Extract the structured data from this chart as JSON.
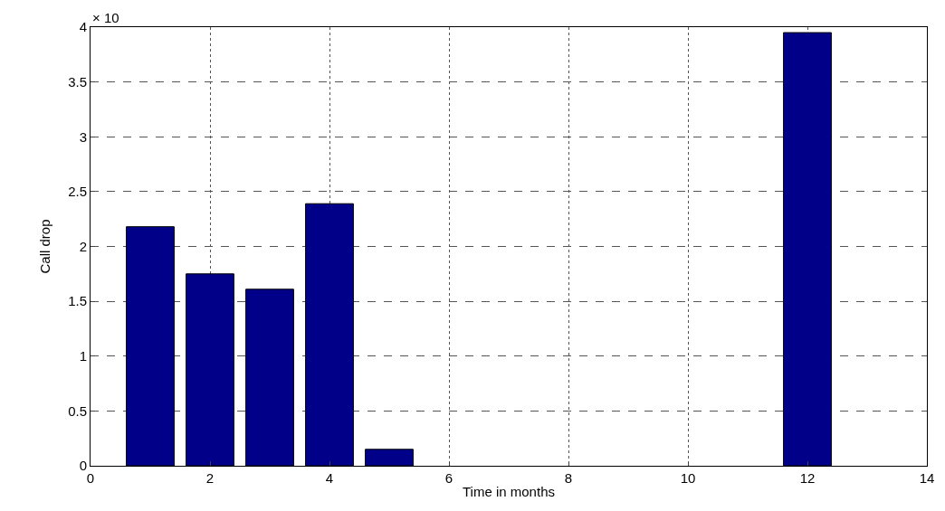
{
  "chart_data": {
    "type": "bar",
    "xlabel": "Time in months",
    "ylabel": "Call drop",
    "annotations": [
      "× 10"
    ],
    "x": [
      1,
      2,
      3,
      4,
      5,
      12
    ],
    "values": [
      2.18,
      1.75,
      1.61,
      2.39,
      0.15,
      3.95
    ],
    "color": "#000088",
    "xlim": [
      0,
      14
    ],
    "xticks": [
      0,
      2,
      4,
      6,
      8,
      10,
      12,
      14
    ],
    "ylim": [
      0,
      4
    ],
    "yticks": [
      0,
      0.5,
      1,
      1.5,
      2,
      2.5,
      3,
      3.5,
      4
    ],
    "grid": true
  }
}
